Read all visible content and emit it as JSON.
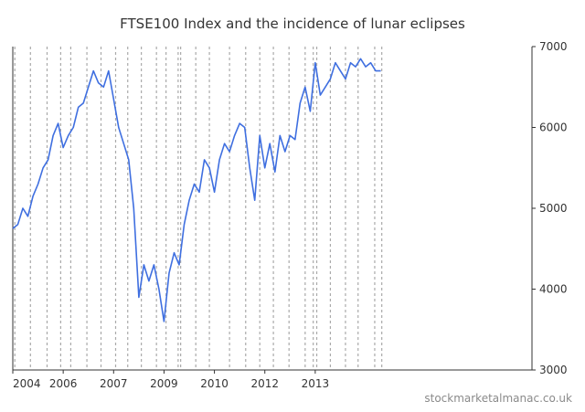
{
  "chart_data": {
    "type": "line",
    "title": "FTSE100 Index and the incidence of lunar eclipses",
    "xlabel": "",
    "ylabel": "",
    "ylim": [
      3000,
      7000
    ],
    "xlim": [
      2004.0,
      2014.3
    ],
    "x_ticks": [
      {
        "label": "2004",
        "value": 2004.0
      },
      {
        "label": "2006",
        "value": 2005.0
      },
      {
        "label": "2007",
        "value": 2006.0
      },
      {
        "label": "2009",
        "value": 2007.0
      },
      {
        "label": "2010",
        "value": 2008.0
      },
      {
        "label": "2012",
        "value": 2009.0
      },
      {
        "label": "2013",
        "value": 2010.0
      }
    ],
    "y_ticks": [
      3000,
      4000,
      5000,
      6000,
      7000
    ],
    "grid": false,
    "line_color": "#3f6fe0",
    "eclipse_line_color": "#aaaaaa",
    "series": [
      {
        "name": "FTSE100",
        "x": [
          2004.0,
          2004.1,
          2004.2,
          2004.3,
          2004.4,
          2004.5,
          2004.6,
          2004.7,
          2004.8,
          2004.9,
          2005.0,
          2005.1,
          2005.2,
          2005.3,
          2005.4,
          2005.5,
          2005.6,
          2005.7,
          2005.8,
          2005.9,
          2006.0,
          2006.1,
          2006.2,
          2006.3,
          2006.4,
          2006.5,
          2006.6,
          2006.7,
          2006.8,
          2006.9,
          2007.0,
          2007.1,
          2007.2,
          2007.3,
          2007.4,
          2007.5,
          2007.6,
          2007.7,
          2007.8,
          2007.9,
          2008.0,
          2008.1,
          2008.2,
          2008.3,
          2008.4,
          2008.5,
          2008.6,
          2008.7,
          2008.8,
          2008.9,
          2009.0,
          2009.1,
          2009.2,
          2009.3,
          2009.4,
          2009.5,
          2009.6,
          2009.7,
          2009.8,
          2009.9,
          2010.0,
          2010.1,
          2010.2,
          2010.3,
          2010.4,
          2010.5,
          2010.6,
          2010.7,
          2010.8,
          2010.9,
          2011.0,
          2011.1,
          2011.2,
          2011.3
        ],
        "values": [
          4750,
          4800,
          5000,
          4900,
          5150,
          5300,
          5500,
          5600,
          5900,
          6050,
          5750,
          5900,
          6000,
          6250,
          6300,
          6500,
          6700,
          6550,
          6500,
          6700,
          6350,
          6000,
          5800,
          5600,
          5000,
          3900,
          4300,
          4100,
          4300,
          4000,
          3600,
          4200,
          4450,
          4300,
          4800,
          5100,
          5300,
          5200,
          5600,
          5500,
          5200,
          5600,
          5800,
          5700,
          5900,
          6050,
          6000,
          5500,
          5100,
          5900,
          5500,
          5800,
          5450,
          5900,
          5700,
          5900,
          5850,
          6300,
          6500,
          6200,
          6800,
          6400,
          6500,
          6600,
          6800,
          6700,
          6600,
          6800,
          6750,
          6850,
          6750,
          6800,
          6700,
          6700
        ]
      }
    ],
    "eclipse_dates": [
      2004.04,
      2004.35,
      2004.68,
      2004.95,
      2005.15,
      2005.47,
      2005.75,
      2006.04,
      2006.28,
      2006.55,
      2006.85,
      2007.04,
      2007.28,
      2007.33,
      2007.63,
      2007.9,
      2008.3,
      2008.62,
      2008.9,
      2009.17,
      2009.48,
      2009.8,
      2009.96,
      2010.03,
      2010.3,
      2010.6,
      2010.85,
      2011.18,
      2011.32
    ]
  },
  "watermark": "stockmarketalmanac.co.uk"
}
